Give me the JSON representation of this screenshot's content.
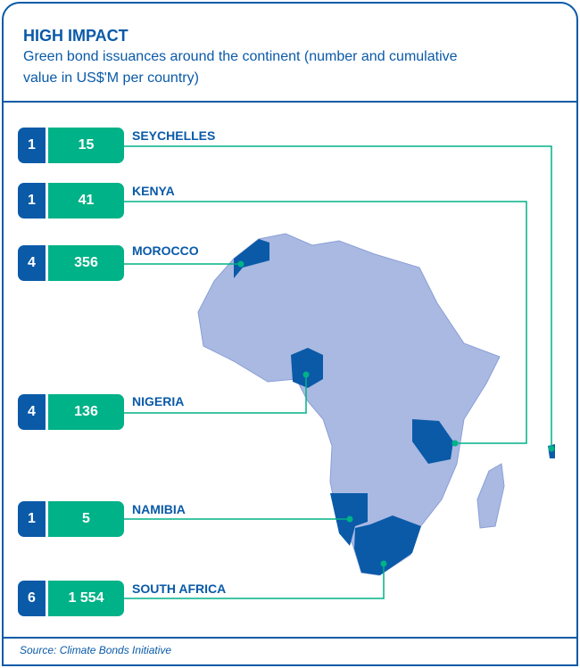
{
  "header": {
    "title": "HIGH IMPACT",
    "subtitle": "Green bond issuances around the continent (number and cumulative value in US$'M per country)"
  },
  "countries": [
    {
      "name": "SEYCHELLES",
      "count": "1",
      "value": "15"
    },
    {
      "name": "KENYA",
      "count": "1",
      "value": "41"
    },
    {
      "name": "MOROCCO",
      "count": "4",
      "value": "356"
    },
    {
      "name": "NIGERIA",
      "count": "4",
      "value": "136"
    },
    {
      "name": "NAMIBIA",
      "count": "1",
      "value": "5"
    },
    {
      "name": "SOUTH AFRICA",
      "count": "6",
      "value": "1 554"
    }
  ],
  "footer": {
    "source": "Source: Climate Bonds Initiative"
  },
  "colors": {
    "blue": "#0a5aa8",
    "green": "#00b287",
    "map": "#a9b9e2"
  }
}
